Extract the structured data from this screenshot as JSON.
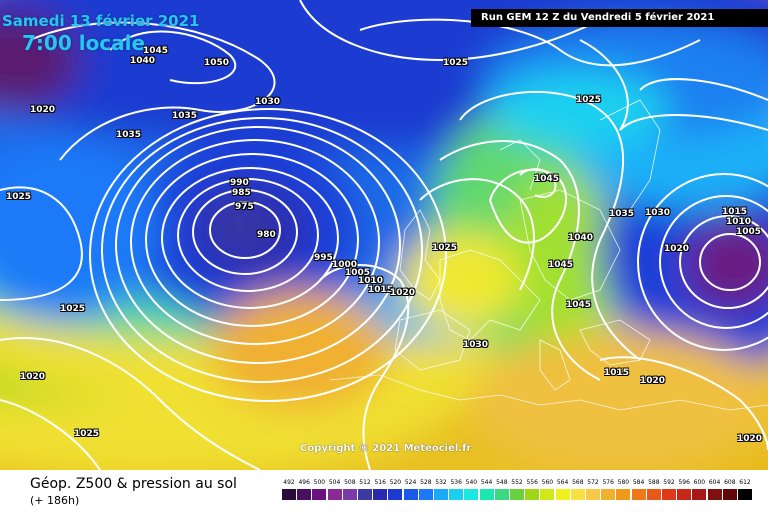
{
  "header": {
    "date": "Samedi 13 février 2021",
    "time": "7:00 locale",
    "run": "Run GEM 12 Z du Vendredi 5 février 2021"
  },
  "copyright": "Copyright © 2021 Meteociel.fr",
  "isobar_labels": [
    {
      "text": "1045"
    },
    {
      "text": "1040"
    },
    {
      "text": "1050"
    },
    {
      "text": "1025"
    },
    {
      "text": "1020"
    },
    {
      "text": "1030"
    },
    {
      "text": "1035"
    },
    {
      "text": "1035"
    },
    {
      "text": "1025"
    },
    {
      "text": "1025"
    },
    {
      "text": "990"
    },
    {
      "text": "985"
    },
    {
      "text": "975"
    },
    {
      "text": "980"
    },
    {
      "text": "995"
    },
    {
      "text": "1000"
    },
    {
      "text": "1005"
    },
    {
      "text": "1010"
    },
    {
      "text": "1015"
    },
    {
      "text": "1020"
    },
    {
      "text": "1025"
    },
    {
      "text": "1045"
    },
    {
      "text": "1040"
    },
    {
      "text": "1045"
    },
    {
      "text": "1045"
    },
    {
      "text": "1035"
    },
    {
      "text": "1030"
    },
    {
      "text": "1015"
    },
    {
      "text": "1010"
    },
    {
      "text": "1005"
    },
    {
      "text": "1020"
    },
    {
      "text": "1025"
    },
    {
      "text": "1030"
    },
    {
      "text": "1020"
    },
    {
      "text": "1025"
    },
    {
      "text": "1015"
    },
    {
      "text": "1020"
    },
    {
      "text": "1020"
    }
  ],
  "footer": {
    "title": "Géop. Z500 & pression au sol",
    "subtitle": "(+ 186h)"
  },
  "legend": {
    "values": [
      "492",
      "496",
      "500",
      "504",
      "508",
      "512",
      "516",
      "520",
      "524",
      "528",
      "532",
      "536",
      "540",
      "544",
      "548",
      "552",
      "556",
      "560",
      "564",
      "568",
      "572",
      "576",
      "580",
      "584",
      "588",
      "592",
      "596",
      "600",
      "604",
      "608",
      "612"
    ],
    "colors": [
      "#2a0a3a",
      "#4a1060",
      "#6a1080",
      "#8a2a98",
      "#7a3aa8",
      "#3a3aa0",
      "#2a2ab0",
      "#1a3ad0",
      "#1a5ae8",
      "#1a7af8",
      "#1aaaf8",
      "#1ad0f0",
      "#1ae8e0",
      "#1ae8b0",
      "#3ad880",
      "#6ad040",
      "#a0d818",
      "#d0e818",
      "#f0f020",
      "#f8e040",
      "#f8c848",
      "#f0b030",
      "#f09818",
      "#f07818",
      "#e85818",
      "#e03818",
      "#c82818",
      "#a81818",
      "#801010",
      "#600808",
      "#000000"
    ]
  }
}
